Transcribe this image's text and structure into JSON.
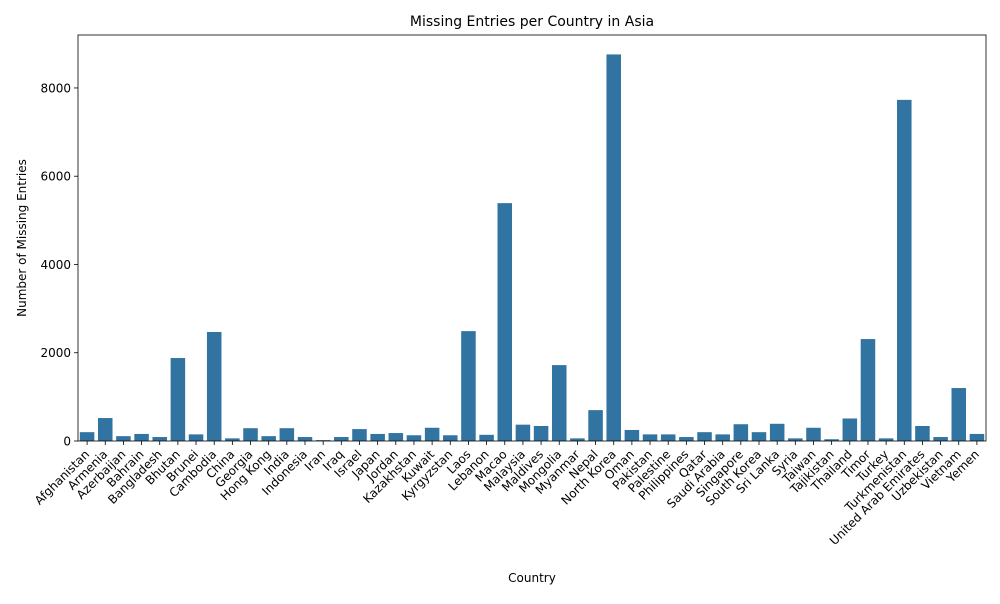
{
  "chart_data": {
    "type": "bar",
    "title": "Missing Entries per Country in Asia",
    "xlabel": "Country",
    "ylabel": "Number of Missing Entries",
    "ylim": [
      0,
      9200
    ],
    "yticks": [
      0,
      2000,
      4000,
      6000,
      8000
    ],
    "ytick_labels": [
      "0",
      "2000",
      "4000",
      "6000",
      "8000"
    ],
    "grid": false,
    "legend": "none",
    "bar_color": "#3274a1",
    "categories": [
      "Afghanistan",
      "Armenia",
      "Azerbaijan",
      "Bahrain",
      "Bangladesh",
      "Bhutan",
      "Brunei",
      "Cambodia",
      "China",
      "Georgia",
      "Hong Kong",
      "India",
      "Indonesia",
      "Iran",
      "Iraq",
      "Israel",
      "Japan",
      "Jordan",
      "Kazakhstan",
      "Kuwait",
      "Kyrgyzstan",
      "Laos",
      "Lebanon",
      "Macao",
      "Malaysia",
      "Maldives",
      "Mongolia",
      "Myanmar",
      "Nepal",
      "North Korea",
      "Oman",
      "Pakistan",
      "Palestine",
      "Philippines",
      "Qatar",
      "Saudi Arabia",
      "Singapore",
      "South Korea",
      "Sri Lanka",
      "Syria",
      "Taiwan",
      "Tajikistan",
      "Thailand",
      "Timor",
      "Turkey",
      "Turkmenistan",
      "United Arab Emirates",
      "Uzbekistan",
      "Vietnam",
      "Yemen"
    ],
    "values": [
      200,
      520,
      110,
      160,
      90,
      1880,
      150,
      2470,
      60,
      290,
      110,
      290,
      90,
      20,
      90,
      270,
      160,
      180,
      130,
      300,
      130,
      2490,
      140,
      5390,
      370,
      340,
      1720,
      60,
      700,
      8760,
      250,
      150,
      150,
      90,
      200,
      150,
      380,
      200,
      390,
      60,
      300,
      40,
      510,
      2310,
      60,
      7730,
      340,
      90,
      1200,
      160
    ]
  }
}
